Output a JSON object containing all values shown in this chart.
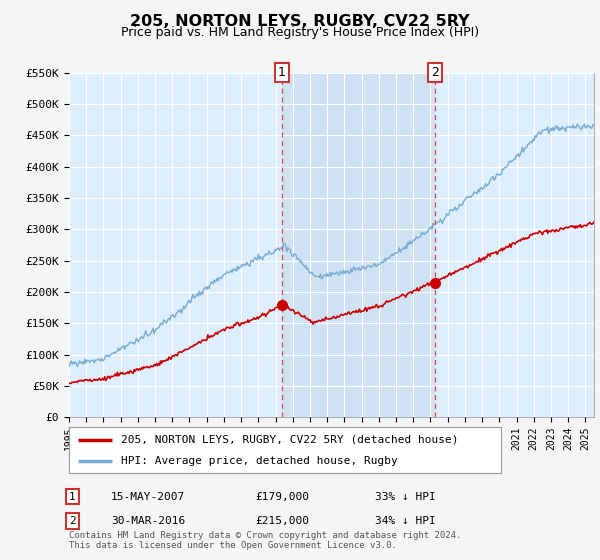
{
  "title": "205, NORTON LEYS, RUGBY, CV22 5RY",
  "subtitle": "Price paid vs. HM Land Registry's House Price Index (HPI)",
  "legend_line1": "205, NORTON LEYS, RUGBY, CV22 5RY (detached house)",
  "legend_line2": "HPI: Average price, detached house, Rugby",
  "annotation1_date": "15-MAY-2007",
  "annotation1_price": "£179,000",
  "annotation1_hpi": "33% ↓ HPI",
  "annotation2_date": "30-MAR-2016",
  "annotation2_price": "£215,000",
  "annotation2_hpi": "34% ↓ HPI",
  "footer": "Contains HM Land Registry data © Crown copyright and database right 2024.\nThis data is licensed under the Open Government Licence v3.0.",
  "red_color": "#cc0000",
  "blue_color": "#7aaad0",
  "vline_color": "#dd4444",
  "grid_color": "#cccccc",
  "bg_color": "#ddeeff",
  "shade_color": "#c8ddf0",
  "ylim": [
    0,
    550000
  ],
  "yticks": [
    0,
    50000,
    100000,
    150000,
    200000,
    250000,
    300000,
    350000,
    400000,
    450000,
    500000,
    550000
  ],
  "ytick_labels": [
    "£0",
    "£50K",
    "£100K",
    "£150K",
    "£200K",
    "£250K",
    "£300K",
    "£350K",
    "£400K",
    "£450K",
    "£500K",
    "£550K"
  ],
  "xmin": 1995.0,
  "xmax": 2025.5,
  "point1_x": 2007.37,
  "point1_y": 179000,
  "point2_x": 2016.25,
  "point2_y": 215000
}
